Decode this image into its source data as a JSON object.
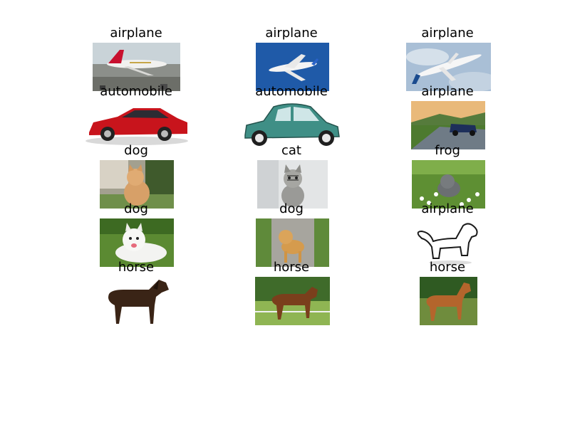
{
  "grid": {
    "rows": [
      [
        {
          "label": "airplane",
          "content": "emirates-airliner-photo"
        },
        {
          "label": "airplane",
          "content": "airliner-blue-sky-photo"
        },
        {
          "label": "airplane",
          "content": "boeing-737-photo"
        }
      ],
      [
        {
          "label": "automobile",
          "content": "red-sedan-photo"
        },
        {
          "label": "automobile",
          "content": "teal-citroen-2cv-photo"
        },
        {
          "label": "airplane",
          "content": "car-on-road-photo"
        }
      ],
      [
        {
          "label": "dog",
          "content": "orange-kitten-photo"
        },
        {
          "label": "cat",
          "content": "tabby-kitten-photo"
        },
        {
          "label": "frog",
          "content": "kitten-in-grass-photo"
        }
      ],
      [
        {
          "label": "dog",
          "content": "white-samoyed-photo"
        },
        {
          "label": "dog",
          "content": "golden-puppy-photo"
        },
        {
          "label": "airplane",
          "content": "dog-line-drawing"
        }
      ],
      [
        {
          "label": "horse",
          "content": "dark-horse-photo"
        },
        {
          "label": "horse",
          "content": "brown-horse-field-photo"
        },
        {
          "label": "horse",
          "content": "chestnut-horse-photo"
        }
      ]
    ]
  }
}
